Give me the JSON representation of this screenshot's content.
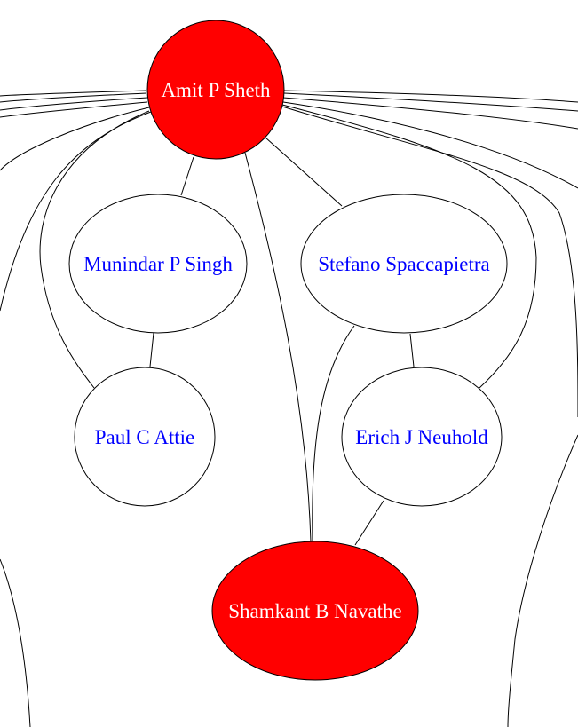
{
  "graph": {
    "colors": {
      "highlight_fill": "#ff0000",
      "highlight_text": "#ffffff",
      "normal_fill": "#ffffff",
      "normal_text": "#0000ff",
      "stroke": "#000000"
    },
    "nodes": [
      {
        "id": "amit",
        "label": "Amit P Sheth",
        "highlight": true
      },
      {
        "id": "munindar",
        "label": "Munindar P Singh",
        "highlight": false
      },
      {
        "id": "stefano",
        "label": "Stefano Spaccapietra",
        "highlight": false
      },
      {
        "id": "paul",
        "label": "Paul C Attie",
        "highlight": false
      },
      {
        "id": "erich",
        "label": "Erich J Neuhold",
        "highlight": false
      },
      {
        "id": "shamkant",
        "label": "Shamkant B Navathe",
        "highlight": true
      }
    ]
  }
}
